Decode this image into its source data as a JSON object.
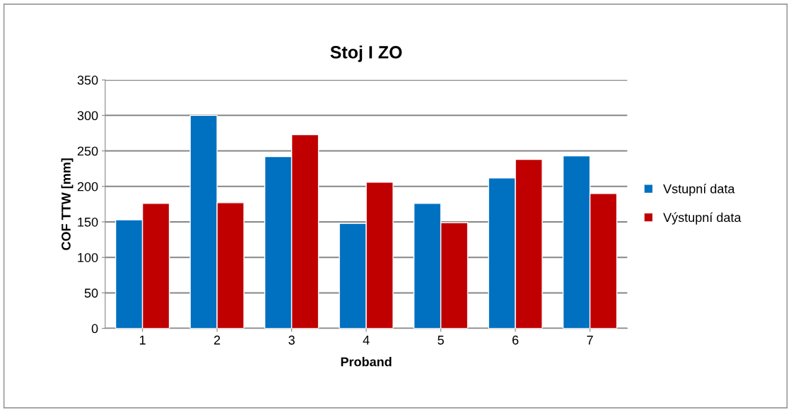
{
  "chart_data": {
    "type": "bar",
    "title": "Stoj I ZO",
    "xlabel": "Proband",
    "ylabel": "COF TTW [mm]",
    "categories": [
      "1",
      "2",
      "3",
      "4",
      "5",
      "6",
      "7"
    ],
    "series": [
      {
        "name": "Vstupní data",
        "color": "#0070c0",
        "values": [
          153,
          300,
          242,
          148,
          176,
          212,
          243
        ]
      },
      {
        "name": "Výstupní data",
        "color": "#c00000",
        "values": [
          176,
          177,
          273,
          206,
          149,
          238,
          190
        ]
      }
    ],
    "ylim": [
      0,
      350
    ],
    "yticks": [
      0,
      50,
      100,
      150,
      200,
      250,
      300,
      350
    ],
    "grid": "y",
    "legend": "right"
  }
}
